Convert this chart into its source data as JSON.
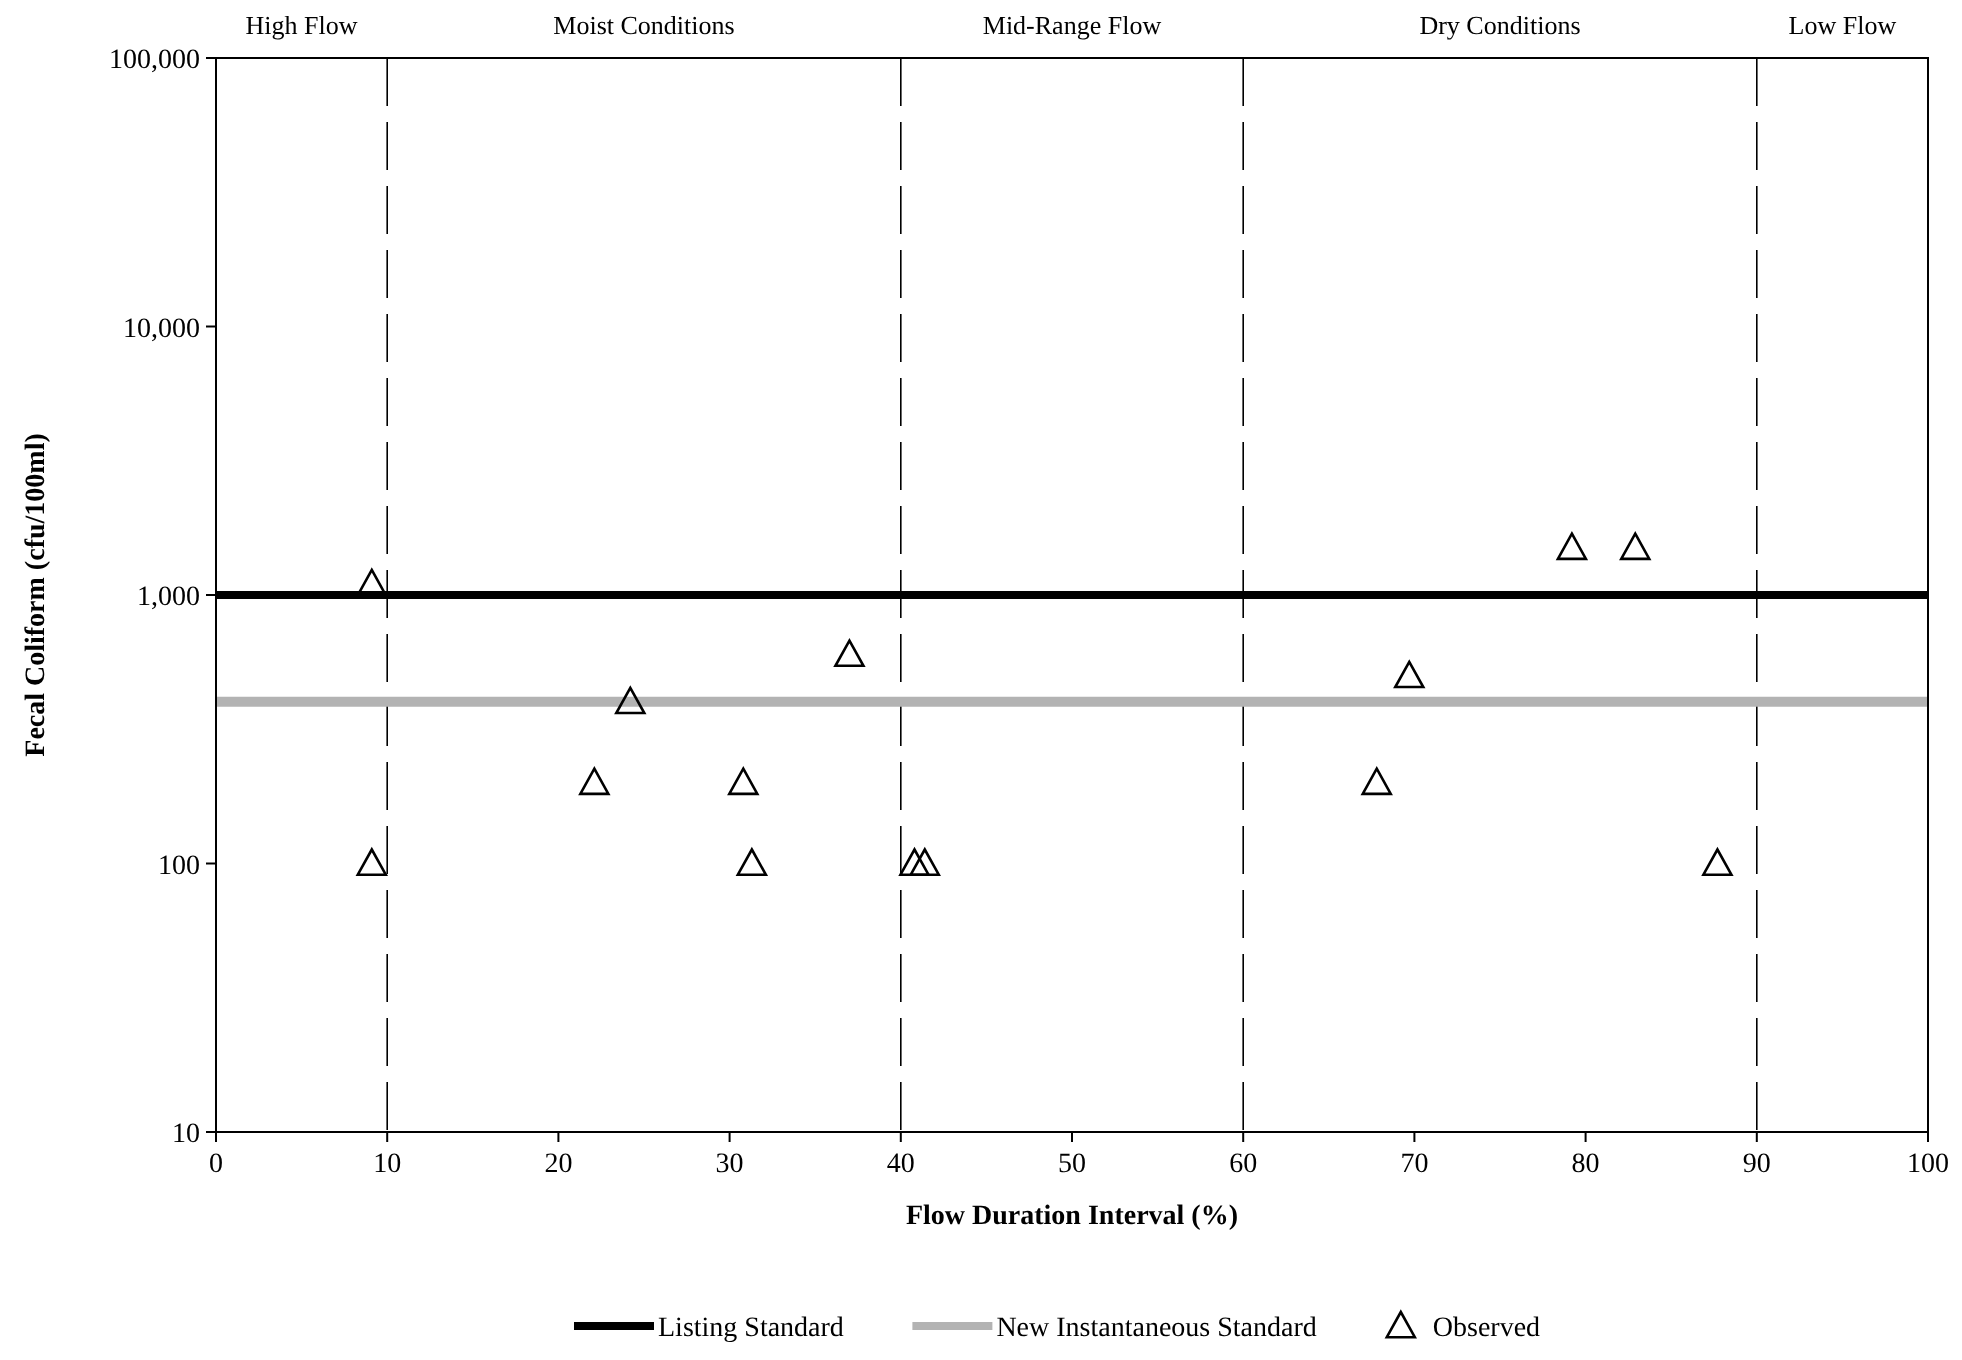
{
  "chart_data": {
    "type": "scatter",
    "xlabel": "Flow Duration Interval (%)",
    "ylabel": "Fecal Coliform (cfu/100ml)",
    "log": "y",
    "xlim": [
      0,
      100
    ],
    "xticks": [
      0,
      10,
      20,
      30,
      40,
      50,
      60,
      70,
      80,
      90,
      100
    ],
    "ylim": [
      10,
      100000
    ],
    "yticks": [
      {
        "value": 10,
        "label": "10"
      },
      {
        "value": 100,
        "label": "100"
      },
      {
        "value": 1000,
        "label": "1,000"
      },
      {
        "value": 10000,
        "label": "10,000"
      },
      {
        "value": 100000,
        "label": "100,000"
      }
    ],
    "grid": false,
    "legend": "bottom",
    "series": [
      {
        "name": "Listing Standard",
        "type": "line",
        "color": "#000000",
        "x": [
          0,
          100
        ],
        "values": [
          1000,
          1000
        ],
        "marker": "none",
        "line_style": "solid"
      },
      {
        "name": "New Instantaneous Standard",
        "type": "line",
        "color": "#b3b3b3",
        "x": [
          0,
          100
        ],
        "values": [
          400,
          400
        ],
        "marker": "none",
        "line_style": "solid"
      },
      {
        "name": "Observed",
        "type": "scatter",
        "color": "#000000",
        "marker": "triangle",
        "x": [
          9.1,
          9.1,
          22.1,
          24.2,
          30.8,
          31.3,
          37.0,
          40.8,
          41.4,
          67.8,
          69.7,
          79.2,
          82.9,
          87.7
        ],
        "values": [
          100,
          1100,
          200,
          400,
          200,
          100,
          600,
          100,
          100,
          200,
          500,
          1500,
          1500,
          100
        ]
      }
    ],
    "ref_lines": [
      {
        "axis": "x",
        "value": 10,
        "line_style": "dashed",
        "color": "#000000"
      },
      {
        "axis": "x",
        "value": 40,
        "line_style": "dashed",
        "color": "#000000"
      },
      {
        "axis": "x",
        "value": 60,
        "line_style": "dashed",
        "color": "#000000"
      },
      {
        "axis": "x",
        "value": 90,
        "line_style": "dashed",
        "color": "#000000"
      }
    ],
    "annotations": [
      "High Flow",
      "Moist Conditions",
      "Mid-Range Flow",
      "Dry Conditions",
      "Low Flow"
    ]
  }
}
